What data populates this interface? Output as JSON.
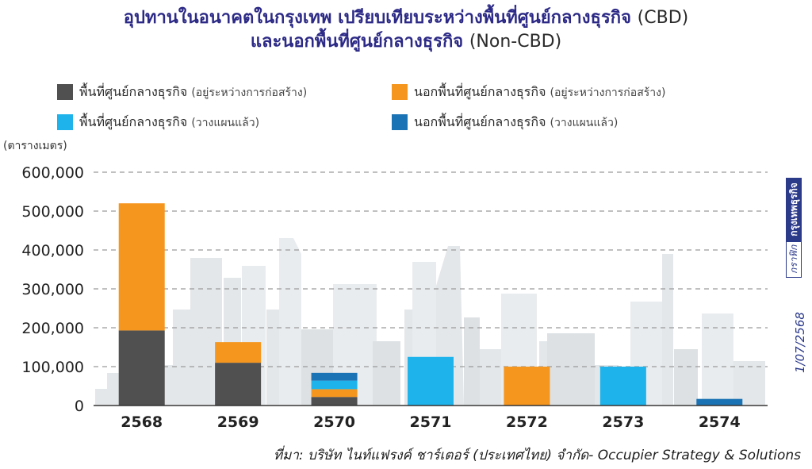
{
  "title": {
    "line1_th": "อุปทานในอนาคตในกรุงเทพ เปรียบเทียบระหว่างพื้นที่ศูนย์กลางธุรกิจ",
    "line1_en": "(CBD)",
    "line2_th": "และนอกพื้นที่ศูนย์กลางธุรกิจ",
    "line2_en": "(Non-CBD)"
  },
  "legend": [
    {
      "label": "พื้นที่ศูนย์กลางธุรกิจ",
      "note": "(อยู่ระหว่างการก่อสร้าง)",
      "color": "#505050"
    },
    {
      "label": "นอกพื้นที่ศูนย์กลางธุรกิจ",
      "note": "(อยู่ระหว่างการก่อสร้าง)",
      "color": "#f5961e"
    },
    {
      "label": "พื้นที่ศูนย์กลางธุรกิจ",
      "note": "(วางแผนแล้ว)",
      "color": "#1eb4eb"
    },
    {
      "label": "นอกพื้นที่ศูนย์กลางธุรกิจ",
      "note": "(วางแผนแล้ว)",
      "color": "#1a73b4"
    }
  ],
  "unit_label": "(ตารางเมตร)",
  "source": "ที่มา: บริษัท ไนท์แฟรงค์ ชาร์เตอร์ (ประเทศไทย) จำกัด- Occupier Strategy & Solutions",
  "date": "1/07/2568",
  "brand": {
    "tag": "กราฟิก",
    "name": "กรุงเทพธุรกิจ"
  },
  "chart_data": {
    "type": "bar",
    "stacked": true,
    "categories": [
      "2568",
      "2569",
      "2570",
      "2571",
      "2572",
      "2573",
      "2574"
    ],
    "series": [
      {
        "name": "พื้นที่ศูนย์กลางธุรกิจ (อยู่ระหว่างการก่อสร้าง)",
        "color": "#505050",
        "values": [
          193000,
          110000,
          22000,
          0,
          0,
          0,
          0
        ]
      },
      {
        "name": "นอกพื้นที่ศูนย์กลางธุรกิจ (อยู่ระหว่างการก่อสร้าง)",
        "color": "#f5961e",
        "values": [
          327000,
          53000,
          20000,
          0,
          100000,
          0,
          0
        ]
      },
      {
        "name": "พื้นที่ศูนย์กลางธุรกิจ (วางแผนแล้ว)",
        "color": "#1eb4eb",
        "values": [
          0,
          0,
          22000,
          125000,
          0,
          100000,
          0
        ]
      },
      {
        "name": "นอกพื้นที่ศูนย์กลางธุรกิจ (วางแผนแล้ว)",
        "color": "#1a73b4",
        "values": [
          0,
          0,
          20000,
          0,
          0,
          0,
          17000
        ]
      }
    ],
    "y_ticks": [
      "0",
      "100,000",
      "200,000",
      "300,000",
      "400,000",
      "500,000",
      "600,000"
    ],
    "ylim": [
      0,
      600000
    ],
    "ylabel": "(ตารางเมตร)",
    "grid": true,
    "legend_position": "top"
  }
}
